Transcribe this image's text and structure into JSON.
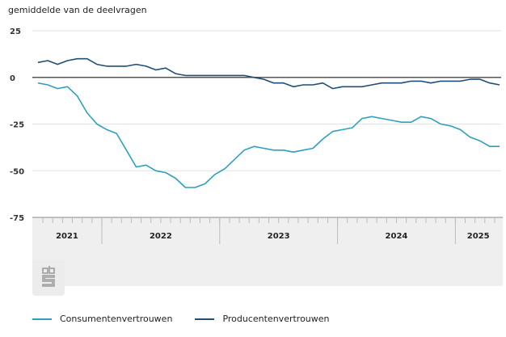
{
  "chart_data": {
    "type": "line",
    "subtitle": "gemiddelde van de deelvragen",
    "title": "",
    "xlabel": "",
    "ylabel": "gemiddelde van de deelvragen",
    "ylim": [
      -75,
      25
    ],
    "yticks": [
      25,
      0,
      -25,
      -50,
      -75
    ],
    "grid": true,
    "legend_position": "bottom-left",
    "x_start": "2021-06",
    "years": [
      {
        "label": "2021",
        "start_month_index": 0,
        "months": 7
      },
      {
        "label": "2022",
        "start_month_index": 7,
        "months": 12
      },
      {
        "label": "2023",
        "start_month_index": 19,
        "months": 12
      },
      {
        "label": "2024",
        "start_month_index": 31,
        "months": 12
      },
      {
        "label": "2025",
        "start_month_index": 43,
        "months": 5
      }
    ],
    "series": [
      {
        "name": "Consumentenvertrouwen",
        "color": "#2f9fbf",
        "values": [
          -3,
          -4,
          -6,
          -5,
          -10,
          -19,
          -25,
          -28,
          -30,
          -39,
          -48,
          -47,
          -50,
          -51,
          -54,
          -59,
          -59,
          -57,
          -52,
          -49,
          -44,
          -39,
          -37,
          -38,
          -39,
          -39,
          -40,
          -39,
          -38,
          -33,
          -29,
          -28,
          -27,
          -22,
          -21,
          -22,
          -23,
          -24,
          -24,
          -21,
          -22,
          -25,
          -26,
          -28,
          -32,
          -34,
          -37,
          -37
        ]
      },
      {
        "name": "Producentenvertrouwen",
        "color": "#1f4e79",
        "values": [
          8,
          9,
          7,
          9,
          10,
          10,
          7,
          6,
          6,
          6,
          7,
          6,
          4,
          5,
          2,
          1,
          1,
          1,
          1,
          1,
          1,
          1,
          0,
          -1,
          -3,
          -3,
          -5,
          -4,
          -4,
          -3,
          -6,
          -5,
          -5,
          -5,
          -4,
          -3,
          -3,
          -3,
          -2,
          -2,
          -3,
          -2,
          -2,
          -2,
          -1,
          -1,
          -3,
          -4
        ]
      }
    ]
  },
  "logo": {
    "name": "cbs-logo"
  }
}
